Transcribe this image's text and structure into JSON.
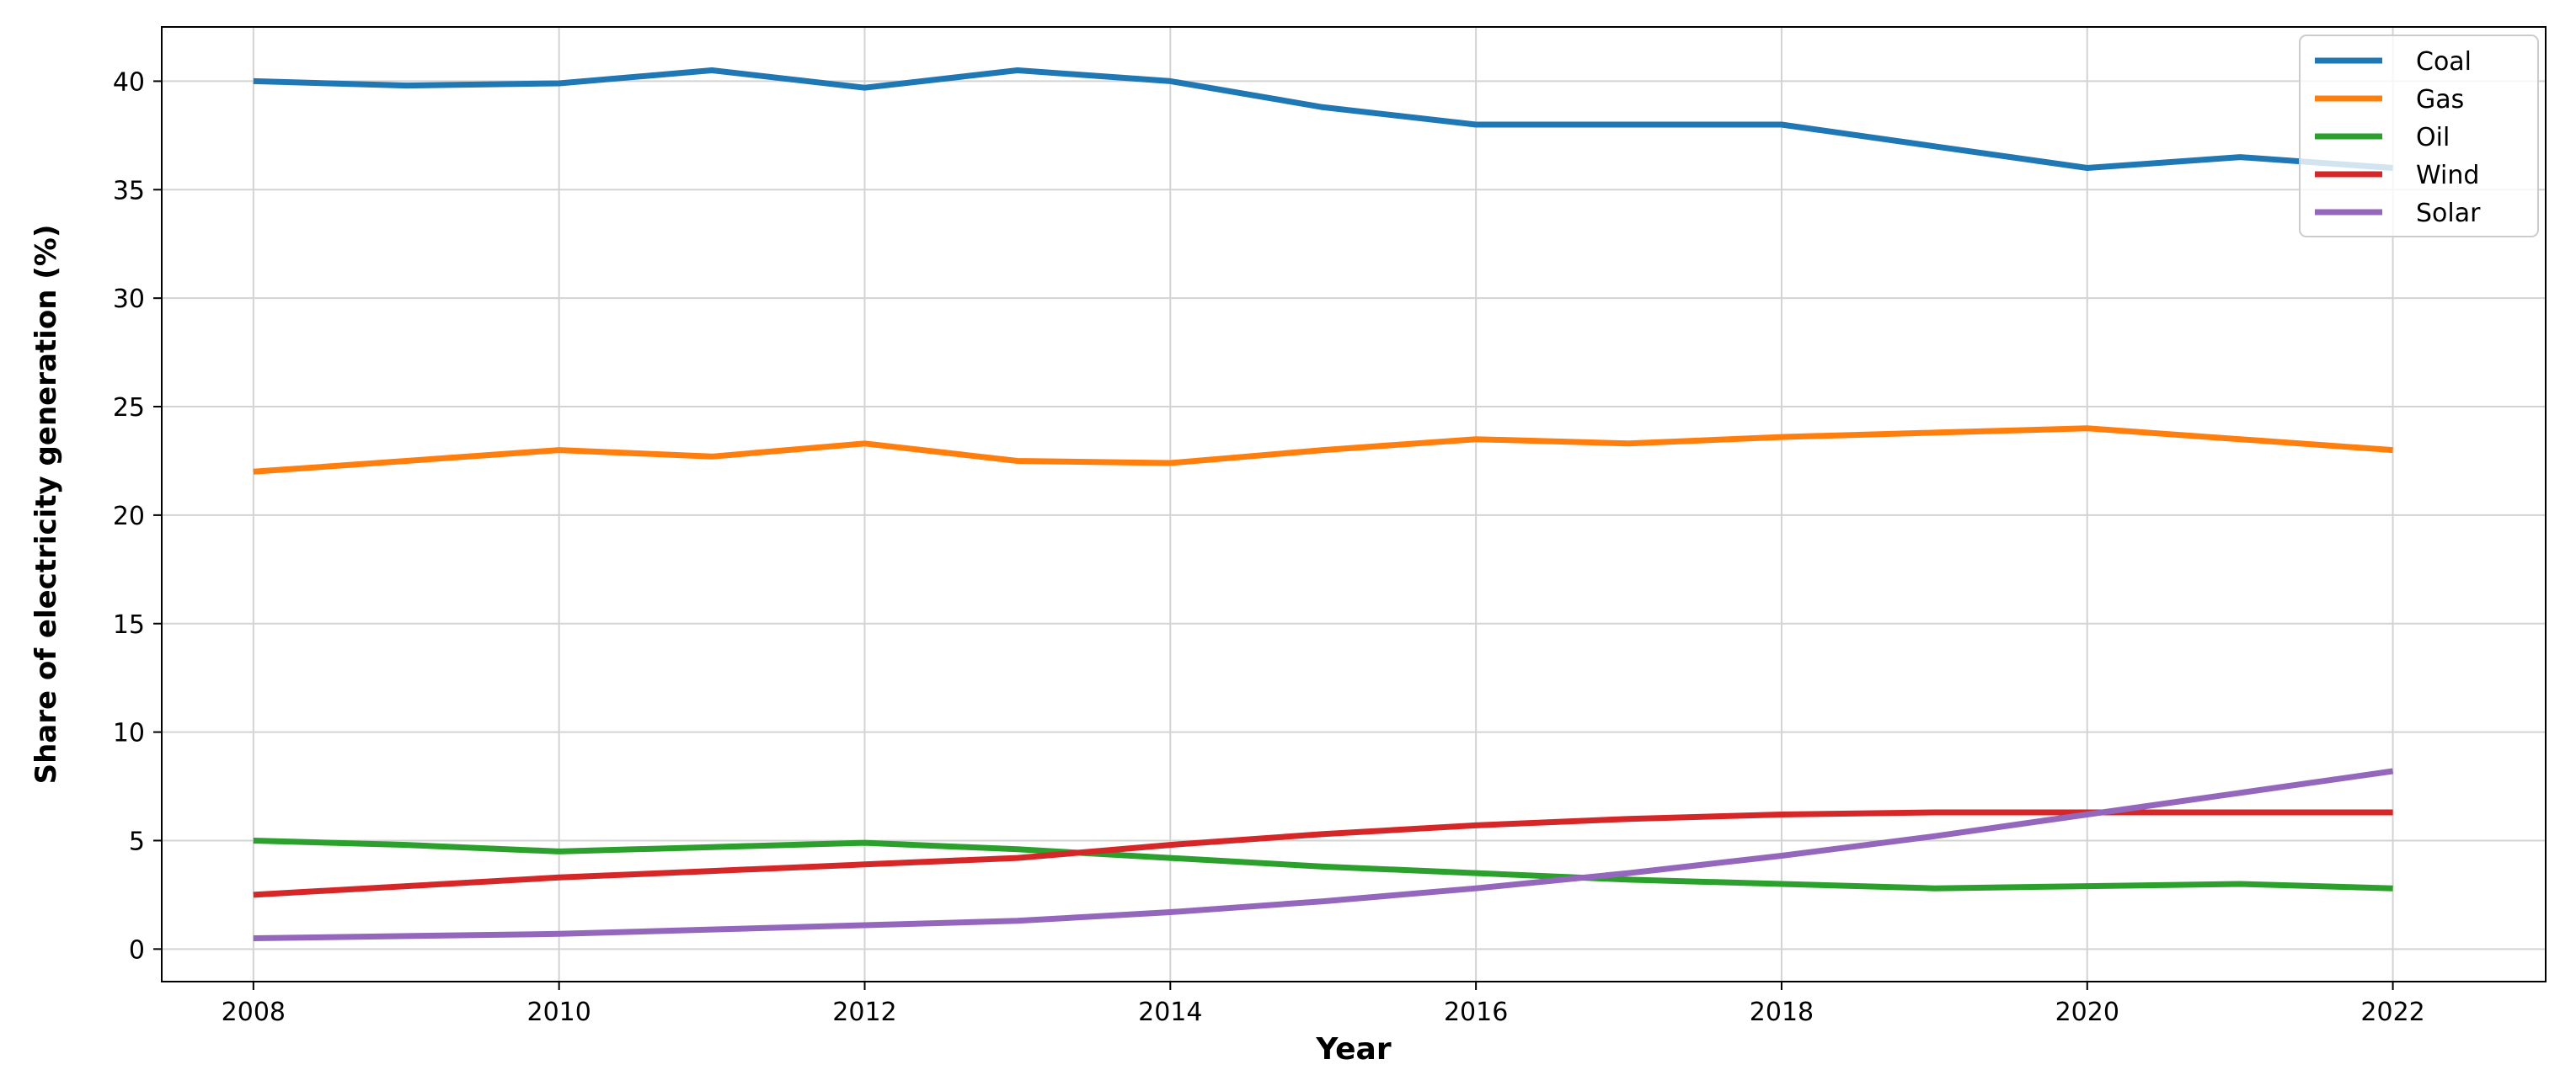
{
  "chart_data": {
    "type": "line",
    "title": "",
    "xlabel": "Year",
    "ylabel": "Share of electricity generation (%)",
    "x": [
      2008,
      2009,
      2010,
      2011,
      2012,
      2013,
      2014,
      2015,
      2016,
      2017,
      2018,
      2019,
      2020,
      2021,
      2022
    ],
    "xticks": [
      "2008",
      "2010",
      "2012",
      "2014",
      "2016",
      "2018",
      "2020",
      "2022"
    ],
    "yticks": [
      "0",
      "5",
      "10",
      "15",
      "20",
      "25",
      "30",
      "35",
      "40"
    ],
    "xlim": [
      2007.4,
      2023
    ],
    "ylim": [
      -1.5,
      42.5
    ],
    "grid": true,
    "legend_position": "top-right",
    "series": [
      {
        "name": "Coal",
        "color": "#1f77b4",
        "values": [
          40.0,
          39.8,
          39.9,
          40.5,
          39.7,
          40.5,
          40.0,
          38.8,
          38.0,
          38.0,
          38.0,
          37.0,
          36.0,
          36.5,
          36.0
        ]
      },
      {
        "name": "Gas",
        "color": "#ff7f0e",
        "values": [
          22.0,
          22.5,
          23.0,
          22.7,
          23.3,
          22.5,
          22.4,
          23.0,
          23.5,
          23.3,
          23.6,
          23.8,
          24.0,
          23.5,
          23.0
        ]
      },
      {
        "name": "Oil",
        "color": "#2ca02c",
        "values": [
          5.0,
          4.8,
          4.5,
          4.7,
          4.9,
          4.6,
          4.2,
          3.8,
          3.5,
          3.2,
          3.0,
          2.8,
          2.9,
          3.0,
          2.8
        ]
      },
      {
        "name": "Wind",
        "color": "#d62728",
        "values": [
          2.5,
          2.9,
          3.3,
          3.6,
          3.9,
          4.2,
          4.8,
          5.3,
          5.7,
          6.0,
          6.2,
          6.3,
          6.3,
          6.3,
          6.3
        ]
      },
      {
        "name": "Solar",
        "color": "#9467bd",
        "values": [
          0.5,
          0.6,
          0.7,
          0.9,
          1.1,
          1.3,
          1.7,
          2.2,
          2.8,
          3.5,
          4.3,
          5.2,
          6.2,
          7.2,
          8.2
        ]
      }
    ]
  }
}
